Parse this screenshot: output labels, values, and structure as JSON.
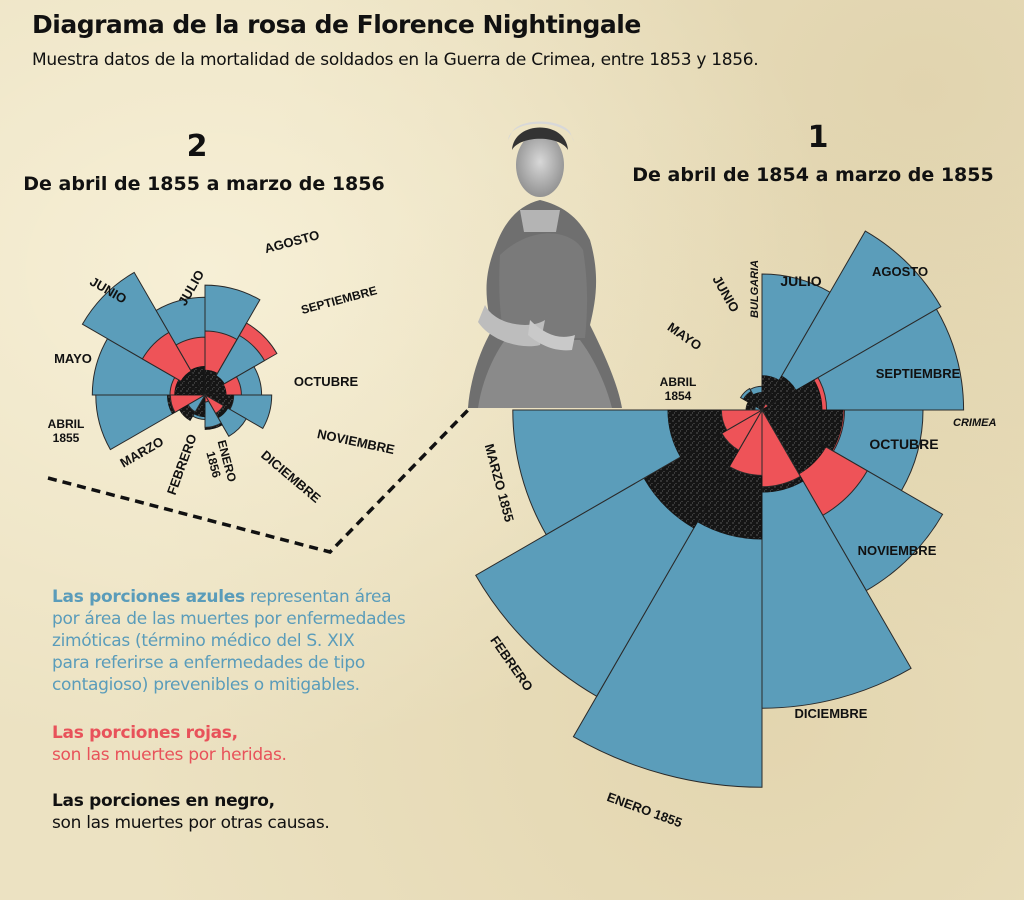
{
  "header": {
    "title": "Diagrama de la rosa de Florence Nightingale",
    "subtitle": "Muestra datos de la mortalidad de soldados en la Guerra de Crimea, entre 1853 y 1856."
  },
  "colors": {
    "zymotic": "#5b9dba",
    "wounds": "#ee5358",
    "other": "#151515",
    "background": "#ece2c2"
  },
  "portrait": {
    "description_icon": "florence-nightingale-portrait"
  },
  "legend": {
    "blue": {
      "strong": "Las porciones azules",
      "rest": " representan área",
      "lines": [
        "por área de las muertes por enfermedades",
        "zimóticas (término médico del S. XIX",
        "para referirse a enfermedades de tipo",
        "contagioso) prevenibles o mitigables."
      ]
    },
    "red": {
      "strong": "Las porciones rojas,",
      "rest": "son las muertes por heridas."
    },
    "black": {
      "strong": "Las porciones en negro,",
      "rest": "son las muertes por otras causas."
    }
  },
  "chart_data": [
    {
      "type": "polar-area",
      "number": "1",
      "period": "De abril de 1854 a marzo de 1855",
      "annotations": [
        "BULGARIA",
        "CRIMEA"
      ],
      "series_names": [
        "zymotic",
        "wounds",
        "other"
      ],
      "months": [
        {
          "label": "ABRIL 1854",
          "zymotic": 1,
          "wounds": 0,
          "other": 5
        },
        {
          "label": "MAYO",
          "zymotic": 12,
          "wounds": 0,
          "other": 9
        },
        {
          "label": "JUNIO",
          "zymotic": 11,
          "wounds": 0,
          "other": 6
        },
        {
          "label": "JULIO",
          "zymotic": 359,
          "wounds": 0,
          "other": 23
        },
        {
          "label": "AGOSTO",
          "zymotic": 828,
          "wounds": 1,
          "other": 30
        },
        {
          "label": "SEPTIEMBRE",
          "zymotic": 788,
          "wounds": 81,
          "other": 70
        },
        {
          "label": "OCTUBRE",
          "zymotic": 503,
          "wounds": 132,
          "other": 128
        },
        {
          "label": "NOVIEMBRE",
          "zymotic": 844,
          "wounds": 287,
          "other": 106
        },
        {
          "label": "DICIEMBRE",
          "zymotic": 1725,
          "wounds": 114,
          "other": 131
        },
        {
          "label": "ENERO 1855",
          "zymotic": 2761,
          "wounds": 83,
          "other": 324
        },
        {
          "label": "FEBRERO",
          "zymotic": 2120,
          "wounds": 42,
          "other": 361
        },
        {
          "label": "MARZO 1855",
          "zymotic": 1205,
          "wounds": 32,
          "other": 172
        }
      ]
    },
    {
      "type": "polar-area",
      "number": "2",
      "period": "De abril de 1855 a marzo de 1856",
      "series_names": [
        "zymotic",
        "wounds",
        "other"
      ],
      "months": [
        {
          "label": "ABRIL 1855",
          "zymotic": 477,
          "wounds": 48,
          "other": 57
        },
        {
          "label": "MAYO",
          "zymotic": 508,
          "wounds": 49,
          "other": 37
        },
        {
          "label": "JUNIO",
          "zymotic": 802,
          "wounds": 209,
          "other": 31
        },
        {
          "label": "JULIO",
          "zymotic": 382,
          "wounds": 134,
          "other": 33
        },
        {
          "label": "AGOSTO",
          "zymotic": 483,
          "wounds": 164,
          "other": 25
        },
        {
          "label": "SEPTIEMBRE",
          "zymotic": 189,
          "wounds": 276,
          "other": 20
        },
        {
          "label": "OCTUBRE",
          "zymotic": 128,
          "wounds": 53,
          "other": 18
        },
        {
          "label": "NOVIEMBRE",
          "zymotic": 178,
          "wounds": 33,
          "other": 32
        },
        {
          "label": "DICIEMBRE",
          "zymotic": 91,
          "wounds": 18,
          "other": 28
        },
        {
          "label": "ENERO 1856",
          "zymotic": 42,
          "wounds": 2,
          "other": 48
        },
        {
          "label": "FEBRERO",
          "zymotic": 24,
          "wounds": 0,
          "other": 19
        },
        {
          "label": "MARZO",
          "zymotic": 15,
          "wounds": 0,
          "other": 35
        }
      ]
    }
  ]
}
